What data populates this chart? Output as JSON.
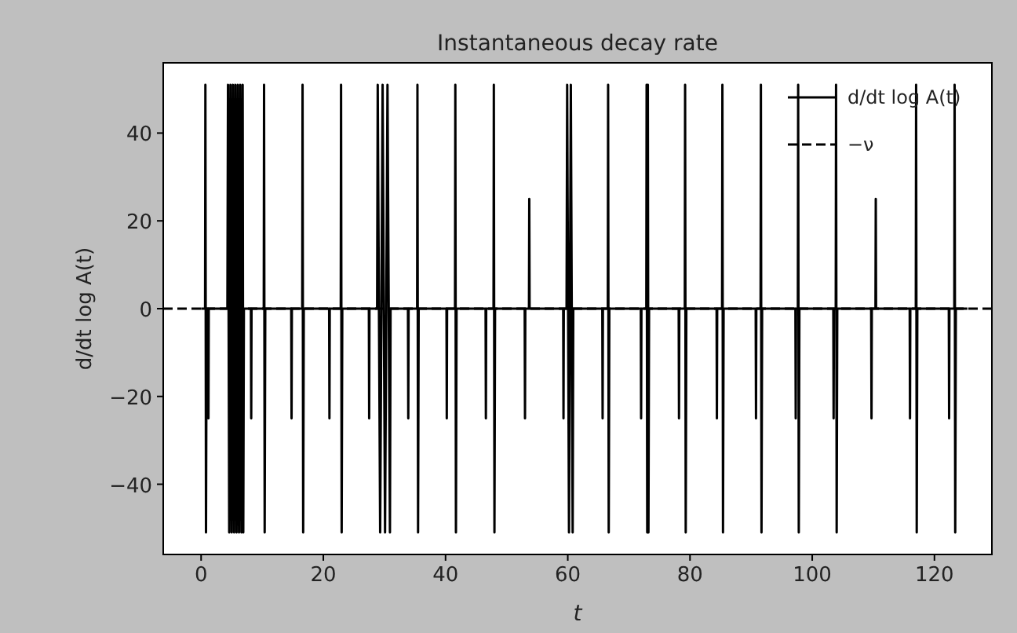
{
  "chart_data": {
    "type": "line",
    "title": "Instantaneous decay rate",
    "xlabel": "t",
    "ylabel": "d/dt log A(t)",
    "xlim": [
      -6.2,
      129.4
    ],
    "ylim": [
      -56,
      56
    ],
    "xticks": [
      0,
      20,
      40,
      60,
      80,
      100,
      120
    ],
    "yticks": [
      -40,
      -20,
      0,
      20,
      40
    ],
    "grid": false,
    "legend": "top right",
    "series": [
      {
        "name": "d/dt log A(t)",
        "color": "#000000",
        "line_style": "solid",
        "x": [
          0,
          0.65,
          0.7,
          0.8,
          0.9,
          1.15,
          1.2,
          1.25,
          4.3,
          4.4,
          4.6,
          4.8,
          5.0,
          5.2,
          5.4,
          5.6,
          5.8,
          6.0,
          6.2,
          6.4,
          6.6,
          6.8,
          6.9,
          7.0,
          8.15,
          8.2,
          8.25,
          10.25,
          10.3,
          10.4,
          10.5,
          14.75,
          14.8,
          14.85,
          16.55,
          16.6,
          16.7,
          16.8,
          20.95,
          21.0,
          21.05,
          22.85,
          22.9,
          23.0,
          23.1,
          27.45,
          27.5,
          27.55,
          28.8,
          28.9,
          29.3,
          29.7,
          30.1,
          30.5,
          30.9,
          31.0,
          33.85,
          33.9,
          33.95,
          35.35,
          35.4,
          35.5,
          35.6,
          40.15,
          40.2,
          40.25,
          41.55,
          41.6,
          41.7,
          41.8,
          46.55,
          46.6,
          46.65,
          47.85,
          47.9,
          48.0,
          48.1,
          52.95,
          53.0,
          53.05,
          53.65,
          53.7,
          53.75,
          59.25,
          59.3,
          59.35,
          59.8,
          59.9,
          60.2,
          60.5,
          60.8,
          60.9,
          65.65,
          65.7,
          65.75,
          66.55,
          66.6,
          66.7,
          66.8,
          71.95,
          72.0,
          72.05,
          72.85,
          72.9,
          73.0,
          73.1,
          73.2,
          73.3,
          78.15,
          78.2,
          78.25,
          79.15,
          79.2,
          79.3,
          79.4,
          84.35,
          84.4,
          84.45,
          85.25,
          85.3,
          85.4,
          85.5,
          90.75,
          90.8,
          90.85,
          91.55,
          91.6,
          91.7,
          91.8,
          97.25,
          97.3,
          97.35,
          97.65,
          97.7,
          97.8,
          97.9,
          103.45,
          103.5,
          103.55,
          103.85,
          103.9,
          104.0,
          104.1,
          109.65,
          109.7,
          109.75,
          110.35,
          110.4,
          110.45,
          115.95,
          116.0,
          116.05,
          116.95,
          117.0,
          117.1,
          117.2,
          122.35,
          122.4,
          122.45,
          123.25,
          123.3,
          123.4,
          123.5,
          125.4
        ],
        "values": [
          0,
          0,
          51,
          -51,
          0,
          0,
          -25,
          0,
          0,
          51,
          -51,
          51,
          -51,
          51,
          -51,
          51,
          -51,
          51,
          -51,
          51,
          -51,
          51,
          -51,
          0,
          0,
          -25,
          0,
          0,
          51,
          -51,
          0,
          0,
          -25,
          0,
          0,
          51,
          -51,
          0,
          0,
          -25,
          0,
          0,
          51,
          -51,
          0,
          0,
          -25,
          0,
          0,
          51,
          -51,
          51,
          -51,
          51,
          -51,
          0,
          0,
          -25,
          0,
          0,
          51,
          -51,
          0,
          0,
          -25,
          0,
          0,
          51,
          -51,
          0,
          0,
          -25,
          0,
          0,
          51,
          -51,
          0,
          0,
          -25,
          0,
          0,
          25,
          0,
          0,
          -25,
          0,
          0,
          51,
          -51,
          51,
          -51,
          0,
          0,
          -25,
          0,
          0,
          51,
          -51,
          0,
          0,
          -25,
          0,
          0,
          51,
          -51,
          51,
          -51,
          0,
          0,
          -25,
          0,
          0,
          51,
          -51,
          0,
          0,
          -25,
          0,
          0,
          51,
          -51,
          0,
          0,
          -25,
          0,
          0,
          51,
          -51,
          0,
          0,
          -25,
          0,
          0,
          51,
          -51,
          0,
          0,
          -25,
          0,
          0,
          51,
          -51,
          0,
          0,
          -25,
          0,
          0,
          25,
          0,
          0,
          -25,
          0,
          0,
          51,
          -51,
          0,
          0,
          -25,
          0,
          0,
          51,
          -51,
          0,
          0
        ]
      },
      {
        "name": "−ν",
        "color": "#000000",
        "line_style": "dashed",
        "x": [
          -6.2,
          129.4
        ],
        "values": [
          0,
          0
        ]
      }
    ]
  }
}
